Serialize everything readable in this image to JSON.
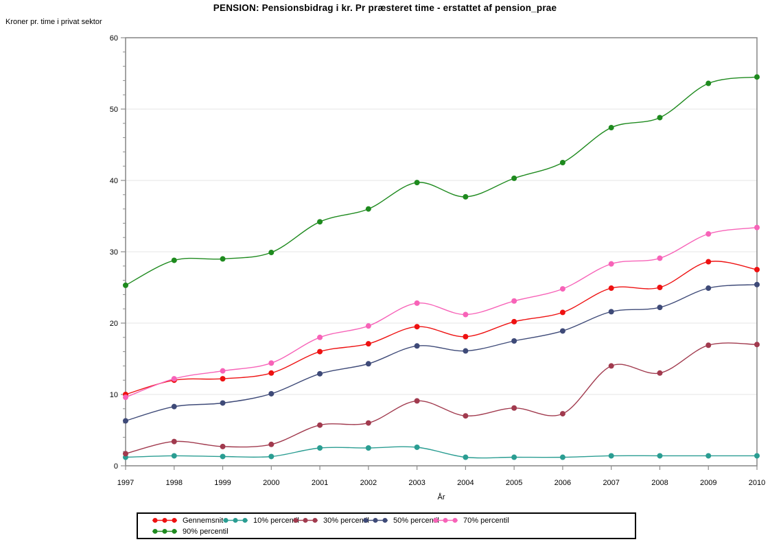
{
  "title": "PENSION: Pensionsbidrag i kr. Pr præsteret time - erstattet af pension_prae",
  "chart_data": {
    "type": "line",
    "x": [
      1997,
      1998,
      1999,
      2000,
      2001,
      2002,
      2003,
      2004,
      2005,
      2006,
      2007,
      2008,
      2009,
      2010
    ],
    "xlabel": "År",
    "ylabel": "Kroner pr. time i privat sektor",
    "ylim": [
      0,
      60
    ],
    "y_major_ticks": [
      0,
      10,
      20,
      30,
      40,
      50,
      60
    ],
    "y_minor_step": 2,
    "grid": "horizontal-only",
    "line_interpolation": "spline",
    "marker": "filled-circle",
    "legend_position": "bottom-boxed",
    "axis_color": "#8c8c8c",
    "gridline_color": "#e4e4e4",
    "series": [
      {
        "name": "Gennemsnit",
        "color": "#ee1111",
        "values": [
          10.0,
          12.0,
          12.2,
          13.0,
          16.0,
          17.1,
          19.5,
          18.1,
          20.2,
          21.5,
          24.9,
          25.0,
          28.6,
          27.5
        ]
      },
      {
        "name": "10% percentil",
        "color": "#2a9d92",
        "values": [
          1.2,
          1.4,
          1.3,
          1.3,
          2.5,
          2.5,
          2.6,
          1.2,
          1.2,
          1.2,
          1.4,
          1.4,
          1.4,
          1.4
        ]
      },
      {
        "name": "30% percentil",
        "color": "#a13a4e",
        "values": [
          1.7,
          3.4,
          2.7,
          3.0,
          5.7,
          6.0,
          9.1,
          7.0,
          8.1,
          7.3,
          14.0,
          13.0,
          16.9,
          17.0
        ]
      },
      {
        "name": "50% percentil",
        "color": "#3e4a78",
        "values": [
          6.3,
          8.3,
          8.8,
          10.1,
          12.9,
          14.3,
          16.8,
          16.1,
          17.5,
          18.9,
          21.6,
          22.2,
          24.9,
          25.4
        ]
      },
      {
        "name": "70% percentil",
        "color": "#f763b8",
        "values": [
          9.6,
          12.2,
          13.3,
          14.4,
          18.0,
          19.6,
          22.8,
          21.2,
          23.1,
          24.8,
          28.3,
          29.1,
          32.5,
          33.4
        ]
      },
      {
        "name": "90% percentil",
        "color": "#1e8a1e",
        "values": [
          25.3,
          28.8,
          29.0,
          29.9,
          34.2,
          36.0,
          39.7,
          37.7,
          40.3,
          42.5,
          47.4,
          48.8,
          53.6,
          54.5
        ]
      }
    ]
  },
  "legend": {
    "row1_items": [
      "Gennemsnit",
      "10% percentil",
      "30% percentil",
      "50% percentil",
      "70% percentil"
    ],
    "row2_items": [
      "90% percentil"
    ]
  }
}
